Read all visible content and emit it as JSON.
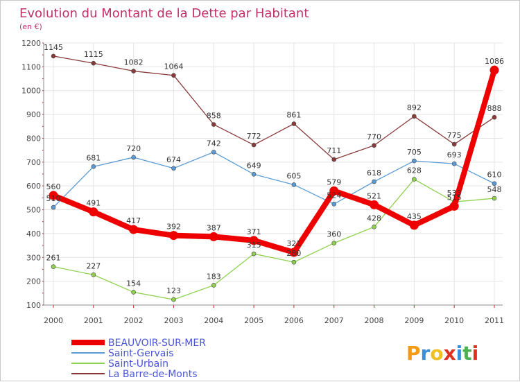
{
  "title": "Evolution du Montant de la Dette par Habitant",
  "subtitle": "(en €)",
  "logo": {
    "text": "Proxiti",
    "letters": [
      "P",
      "r",
      "o",
      "x",
      "i",
      "t",
      "i"
    ],
    "letter_colors": [
      "#f39c12",
      "#3a8fd6",
      "#f0c020",
      "#e03020",
      "#3a8fd6",
      "#4caf50",
      "#e03020"
    ]
  },
  "colors": {
    "title": "#c0306a",
    "axis": "#444444",
    "grid": "#e4e4e4",
    "tick_mark": "#d02020"
  },
  "chart_data": {
    "type": "line",
    "title": "Evolution du Montant de la Dette par Habitant",
    "subtitle": "(en €)",
    "x": [
      "2000",
      "2001",
      "2002",
      "2003",
      "2004",
      "2005",
      "2006",
      "2007",
      "2008",
      "2009",
      "2010",
      "2011"
    ],
    "ylim": [
      100,
      1200
    ],
    "yticks": [
      100,
      200,
      300,
      400,
      500,
      600,
      700,
      800,
      900,
      1000,
      1100,
      1200
    ],
    "grid": true,
    "legend_position": "bottom-left",
    "series": [
      {
        "name": "BEAUVOIR-SUR-MER",
        "color": "#ee0000",
        "values": [
          560,
          491,
          417,
          392,
          387,
          371,
          321,
          579,
          521,
          435,
          515,
          1086
        ]
      },
      {
        "name": "Saint-Gervais",
        "color": "#5b9bd5",
        "values": [
          510,
          681,
          720,
          674,
          742,
          649,
          605,
          524,
          618,
          705,
          693,
          610
        ]
      },
      {
        "name": "Saint-Urbain",
        "color": "#8fd14f",
        "values": [
          261,
          227,
          154,
          123,
          183,
          315,
          280,
          360,
          428,
          628,
          533,
          548
        ]
      },
      {
        "name": "La Barre-de-Monts",
        "color": "#8b3a3a",
        "values": [
          1145,
          1115,
          1082,
          1064,
          858,
          772,
          861,
          711,
          770,
          892,
          775,
          888
        ]
      }
    ]
  }
}
